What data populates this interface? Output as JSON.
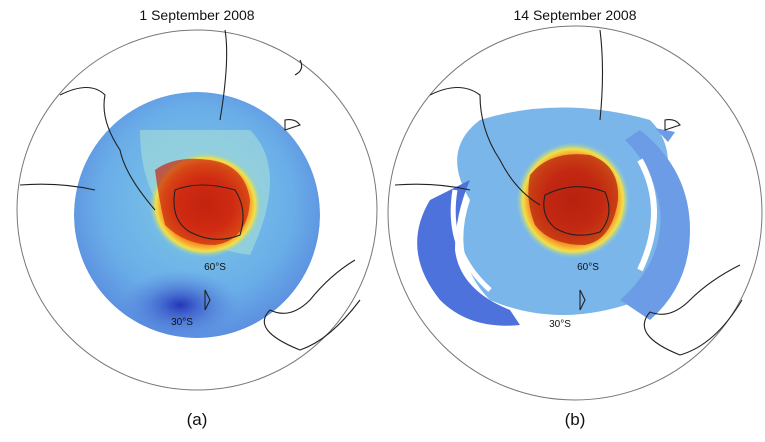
{
  "panels": [
    {
      "title": "1 September 2008",
      "labels": [
        "60°S",
        "30°S"
      ],
      "caption": "(a)"
    },
    {
      "title": "14 September 2008",
      "labels": [
        "60°S",
        "30°S"
      ],
      "caption": "(b)"
    }
  ]
}
